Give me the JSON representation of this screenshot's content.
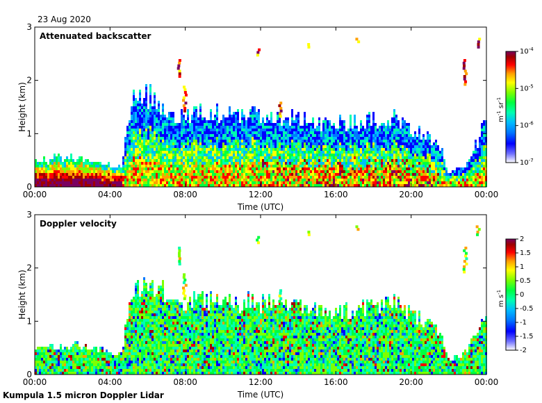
{
  "date_label": "23 Aug 2020",
  "footer": "Kumpula 1.5 micron Doppler Lidar",
  "chart_data": [
    {
      "type": "heatmap",
      "title": "Attenuated backscatter",
      "xlabel": "Time (UTC)",
      "ylabel": "Height (km)",
      "x_ticks": [
        "00:00",
        "04:00",
        "08:00",
        "12:00",
        "16:00",
        "20:00",
        "00:00"
      ],
      "x_range_hours": [
        0,
        24
      ],
      "y_ticks": [
        "0",
        "1",
        "2",
        "3"
      ],
      "ylim": [
        0,
        3
      ],
      "colorbar": {
        "scale": "log",
        "range": [
          1e-07,
          0.0001
        ],
        "tick_labels": [
          "10-7",
          "10-6",
          "10-5",
          "10-4"
        ],
        "units": "m-1 sr-1"
      },
      "colormap": [
        "#ffffff",
        "#6f6fff",
        "#0000ff",
        "#0077ff",
        "#00bbff",
        "#00ffb0",
        "#00ff40",
        "#7dff00",
        "#ffff00",
        "#ffa000",
        "#ff0000",
        "#a00000",
        "#7a0060"
      ],
      "profile": [
        {
          "t": 0.0,
          "top_km": 0.45
        },
        {
          "t": 2.0,
          "top_km": 0.55
        },
        {
          "t": 4.6,
          "top_km": 0.35
        },
        {
          "t": 5.2,
          "top_km": 1.6
        },
        {
          "t": 6.0,
          "top_km": 1.7
        },
        {
          "t": 7.5,
          "top_km": 1.35
        },
        {
          "t": 10.0,
          "top_km": 1.35
        },
        {
          "t": 13.0,
          "top_km": 1.3
        },
        {
          "t": 16.0,
          "top_km": 1.15
        },
        {
          "t": 19.0,
          "top_km": 1.3
        },
        {
          "t": 21.5,
          "top_km": 0.8
        },
        {
          "t": 22.0,
          "top_km": 0.25
        },
        {
          "t": 23.0,
          "top_km": 0.4
        },
        {
          "t": 24.0,
          "top_km": 1.2
        }
      ]
    },
    {
      "type": "heatmap",
      "title": "Doppler velocity",
      "xlabel": "Time (UTC)",
      "ylabel": "Height (km)",
      "x_ticks": [
        "00:00",
        "04:00",
        "08:00",
        "12:00",
        "16:00",
        "20:00",
        "00:00"
      ],
      "x_range_hours": [
        0,
        24
      ],
      "y_ticks": [
        "0",
        "1",
        "2",
        "3"
      ],
      "ylim": [
        0,
        3
      ],
      "colorbar": {
        "scale": "linear",
        "range": [
          -2,
          2
        ],
        "tick_labels": [
          "-2",
          "-1.5",
          "-1",
          "-0.5",
          "0",
          "0.5",
          "1",
          "1.5",
          "2"
        ],
        "units": "m s-1"
      },
      "colormap": [
        "#ffffff",
        "#6f6fff",
        "#0000ff",
        "#0077ff",
        "#00bbff",
        "#00ffb0",
        "#00ff40",
        "#7dff00",
        "#ffff00",
        "#ffa000",
        "#ff0000",
        "#a00000",
        "#7a0060"
      ]
    }
  ]
}
